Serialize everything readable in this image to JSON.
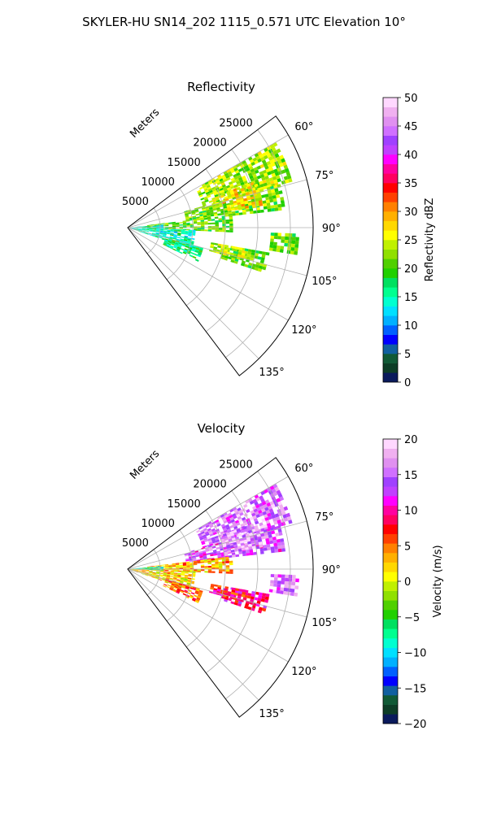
{
  "figure": {
    "title": "SKYLER-HU  SN14_202  1115_0.571 UTC Elevation 10°"
  },
  "chart_data": [
    {
      "type": "heatmap",
      "subtype": "polar-sector-ppi",
      "title": "Reflectivity",
      "range_label": "Meters",
      "range_ticks": [
        5000,
        10000,
        15000,
        20000,
        25000
      ],
      "range_tick_labels": [
        "5000",
        "10000",
        "15000",
        "20000",
        "25000"
      ],
      "range_max": 28500,
      "azimuth_range_deg": [
        53,
        143
      ],
      "azimuth_ticks": [
        60,
        75,
        90,
        105,
        120,
        135
      ],
      "azimuth_tick_labels": [
        "60°",
        "75°",
        "90°",
        "105°",
        "120°",
        "135°"
      ],
      "grid": true,
      "colorbar": {
        "label": "Reflectivity dBZ",
        "min": 0,
        "max": 50,
        "ticks": [
          0,
          5,
          10,
          15,
          20,
          25,
          30,
          35,
          40,
          45,
          50
        ],
        "tick_labels": [
          "0",
          "5",
          "10",
          "15",
          "20",
          "25",
          "30",
          "35",
          "40",
          "45",
          "50"
        ],
        "colors": [
          "#0a1a5c",
          "#0d3d26",
          "#115a36",
          "#1160a0",
          "#0000ff",
          "#0060ff",
          "#00b0ff",
          "#00e0ff",
          "#00ffd0",
          "#00ff90",
          "#00e060",
          "#20d000",
          "#50d000",
          "#90e000",
          "#c0f000",
          "#ffff00",
          "#ffd800",
          "#ffb000",
          "#ff8000",
          "#ff4000",
          "#ff0000",
          "#ff0060",
          "#ff00a0",
          "#ff00ff",
          "#c040ff",
          "#a040ff",
          "#d070ff",
          "#e090f0",
          "#f0b0f0",
          "#ffd8ff"
        ]
      },
      "echo_regions": [
        {
          "az": [
            60,
            74
          ],
          "r": [
            12000,
            26000
          ],
          "value": 23
        },
        {
          "az": [
            74,
            83
          ],
          "r": [
            9000,
            24000
          ],
          "value": 22
        },
        {
          "az": [
            70,
            80
          ],
          "r": [
            15000,
            21000
          ],
          "value": 27
        },
        {
          "az": [
            83,
            92
          ],
          "r": [
            3000,
            16000
          ],
          "value": 21
        },
        {
          "az": [
            85,
            92
          ],
          "r": [
            0,
            5000
          ],
          "value": 14
        },
        {
          "az": [
            92,
            108
          ],
          "r": [
            0,
            10000
          ],
          "value": 15
        },
        {
          "az": [
            100,
            108
          ],
          "r": [
            15000,
            22000
          ],
          "value": 21
        },
        {
          "az": [
            100,
            106
          ],
          "r": [
            13000,
            18000
          ],
          "value": 24
        },
        {
          "az": [
            92,
            99
          ],
          "r": [
            22000,
            26000
          ],
          "value": 22
        },
        {
          "az": [
            105,
            115
          ],
          "r": [
            6000,
            12000
          ],
          "value": 17
        }
      ]
    },
    {
      "type": "heatmap",
      "subtype": "polar-sector-ppi",
      "title": "Velocity",
      "range_label": "Meters",
      "range_ticks": [
        5000,
        10000,
        15000,
        20000,
        25000
      ],
      "range_tick_labels": [
        "5000",
        "10000",
        "15000",
        "20000",
        "25000"
      ],
      "range_max": 28500,
      "azimuth_range_deg": [
        53,
        143
      ],
      "azimuth_ticks": [
        60,
        75,
        90,
        105,
        120,
        135
      ],
      "azimuth_tick_labels": [
        "60°",
        "75°",
        "90°",
        "105°",
        "120°",
        "135°"
      ],
      "grid": true,
      "colorbar": {
        "label": "Velocity (m/s)",
        "min": -20,
        "max": 20,
        "ticks": [
          -20,
          -15,
          -10,
          -5,
          0,
          5,
          10,
          15,
          20
        ],
        "tick_labels": [
          "−20",
          "−15",
          "−10",
          "−5",
          "0",
          "5",
          "10",
          "15",
          "20"
        ],
        "colors": [
          "#0a1a5c",
          "#0d3d26",
          "#115a36",
          "#1160a0",
          "#0000ff",
          "#0060ff",
          "#00b0ff",
          "#00e0ff",
          "#00ffd0",
          "#00ff90",
          "#00e060",
          "#20d000",
          "#50d000",
          "#90e000",
          "#c0f000",
          "#ffff00",
          "#ffd800",
          "#ffb000",
          "#ff8000",
          "#ff4000",
          "#ff0000",
          "#ff0060",
          "#ff00a0",
          "#ff00ff",
          "#c040ff",
          "#a040ff",
          "#d070ff",
          "#e090f0",
          "#f0b0f0",
          "#ffd8ff"
        ]
      },
      "echo_regions": [
        {
          "az": [
            60,
            74
          ],
          "r": [
            12000,
            26000
          ],
          "value": 15
        },
        {
          "az": [
            74,
            83
          ],
          "r": [
            9000,
            24000
          ],
          "value": 14
        },
        {
          "az": [
            70,
            80
          ],
          "r": [
            15000,
            21000
          ],
          "value": 17
        },
        {
          "az": [
            83,
            92
          ],
          "r": [
            3000,
            16000
          ],
          "value": 3
        },
        {
          "az": [
            85,
            92
          ],
          "r": [
            0,
            5000
          ],
          "value": -8
        },
        {
          "az": [
            92,
            108
          ],
          "r": [
            0,
            10000
          ],
          "value": 2
        },
        {
          "az": [
            100,
            108
          ],
          "r": [
            15000,
            22000
          ],
          "value": 10
        },
        {
          "az": [
            100,
            106
          ],
          "r": [
            13000,
            18000
          ],
          "value": 8
        },
        {
          "az": [
            92,
            99
          ],
          "r": [
            22000,
            26000
          ],
          "value": 15
        },
        {
          "az": [
            105,
            115
          ],
          "r": [
            6000,
            12000
          ],
          "value": 5
        }
      ]
    }
  ]
}
